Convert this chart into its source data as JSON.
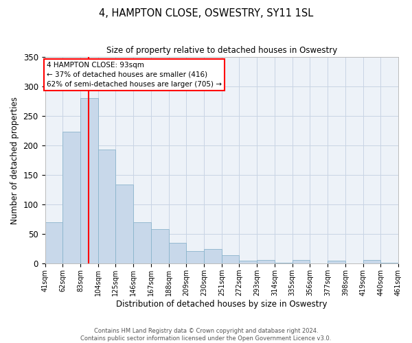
{
  "title": "4, HAMPTON CLOSE, OSWESTRY, SY11 1SL",
  "subtitle": "Size of property relative to detached houses in Oswestry",
  "xlabel": "Distribution of detached houses by size in Oswestry",
  "ylabel": "Number of detached properties",
  "bar_color": "#c8d8ea",
  "bar_edge_color": "#8ab4cc",
  "grid_color": "#c8d4e4",
  "background_color": "#edf2f8",
  "bins": [
    41,
    62,
    83,
    104,
    125,
    146,
    167,
    188,
    209,
    230,
    251,
    272,
    293,
    314,
    335,
    356,
    377,
    398,
    419,
    440,
    461
  ],
  "counts": [
    70,
    224,
    280,
    193,
    134,
    70,
    58,
    35,
    21,
    25,
    14,
    5,
    6,
    1,
    6,
    0,
    5,
    0,
    6,
    1
  ],
  "tick_labels": [
    "41sqm",
    "62sqm",
    "83sqm",
    "104sqm",
    "125sqm",
    "146sqm",
    "167sqm",
    "188sqm",
    "209sqm",
    "230sqm",
    "251sqm",
    "272sqm",
    "293sqm",
    "314sqm",
    "335sqm",
    "356sqm",
    "377sqm",
    "398sqm",
    "419sqm",
    "440sqm",
    "461sqm"
  ],
  "red_line_x": 93,
  "ylim": [
    0,
    350
  ],
  "yticks": [
    0,
    50,
    100,
    150,
    200,
    250,
    300,
    350
  ],
  "annotation_title": "4 HAMPTON CLOSE: 93sqm",
  "annotation_line1": "← 37% of detached houses are smaller (416)",
  "annotation_line2": "62% of semi-detached houses are larger (705) →",
  "footer_line1": "Contains HM Land Registry data © Crown copyright and database right 2024.",
  "footer_line2": "Contains public sector information licensed under the Open Government Licence v3.0."
}
